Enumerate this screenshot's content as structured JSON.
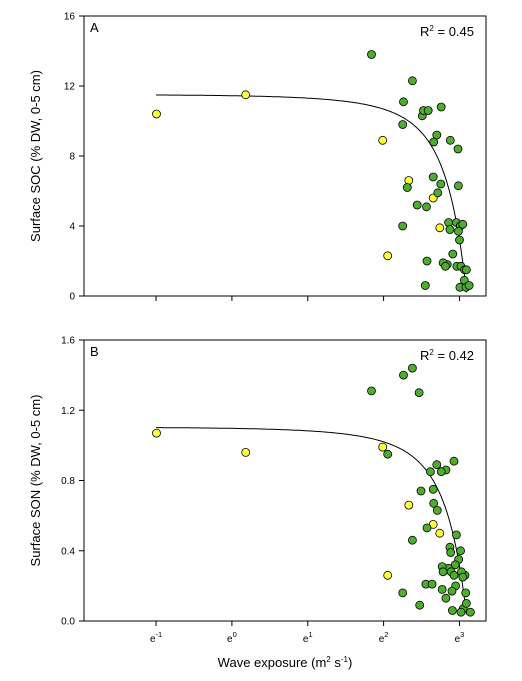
{
  "colors": {
    "green_series": "#4cae2c",
    "yellow_series": "#ffff3a",
    "axis": "#000000",
    "background": "#ffffff"
  },
  "chart_data": [
    {
      "type": "scatter",
      "panel": "A",
      "annotation": "R² = 0.45",
      "ylabel": "Surface SOC (% DW, 0-5 cm)",
      "xlabel": "",
      "x_scale": "log_e",
      "x_ticks": [
        {
          "label": "e",
          "sup": "-1"
        },
        {
          "label": "e",
          "sup": "0"
        },
        {
          "label": "e",
          "sup": "1"
        },
        {
          "label": "e",
          "sup": "2"
        },
        {
          "label": "e",
          "sup": "3"
        }
      ],
      "y_ticks": [
        "0",
        "4",
        "8",
        "12",
        "16"
      ],
      "ylim": [
        0,
        16
      ],
      "xlim_ln": [
        -1.95,
        3.35
      ],
      "grid": false,
      "fit": {
        "ymax": 11.9,
        "k": 0.0435
      },
      "series": [
        {
          "color": "yellow",
          "points": [
            [
              0.37,
              10.4
            ],
            [
              1.2,
              11.5
            ],
            [
              7.3,
              8.9
            ],
            [
              7.8,
              2.3
            ],
            [
              10.3,
              6.6
            ],
            [
              14.2,
              5.6
            ],
            [
              15.5,
              3.9
            ]
          ]
        },
        {
          "color": "green",
          "points": [
            [
              6.3,
              13.8
            ],
            [
              9.6,
              11.1
            ],
            [
              10.8,
              12.3
            ],
            [
              9.5,
              9.8
            ],
            [
              12.3,
              10.3
            ],
            [
              12.5,
              10.6
            ],
            [
              13.3,
              10.6
            ],
            [
              14.3,
              8.8
            ],
            [
              14.9,
              9.2
            ],
            [
              15.8,
              10.8
            ],
            [
              17.8,
              8.9
            ],
            [
              19.7,
              8.4
            ],
            [
              15.7,
              6.4
            ],
            [
              14.2,
              6.8
            ],
            [
              19.8,
              6.3
            ],
            [
              10.1,
              6.2
            ],
            [
              15.1,
              5.9
            ],
            [
              11.5,
              5.2
            ],
            [
              13.0,
              5.1
            ],
            [
              17.4,
              4.2
            ],
            [
              17.7,
              3.8
            ],
            [
              19.3,
              4.2
            ],
            [
              20.3,
              4.0
            ],
            [
              21.0,
              4.1
            ],
            [
              19.8,
              3.7
            ],
            [
              20.1,
              3.2
            ],
            [
              18.4,
              2.4
            ],
            [
              17.1,
              1.8
            ],
            [
              16.2,
              1.9
            ],
            [
              16.7,
              1.7
            ],
            [
              19.4,
              1.7
            ],
            [
              20.5,
              1.7
            ],
            [
              21.5,
              1.5
            ],
            [
              22.0,
              1.5
            ],
            [
              21.4,
              0.9
            ],
            [
              20.2,
              0.5
            ],
            [
              21.9,
              0.5
            ],
            [
              22.8,
              0.6
            ],
            [
              9.5,
              4.0
            ],
            [
              13.1,
              2.0
            ],
            [
              12.8,
              0.6
            ]
          ]
        }
      ]
    },
    {
      "type": "scatter",
      "panel": "B",
      "annotation": "R² = 0.42",
      "ylabel": "Surface SON (% DW, 0-5 cm)",
      "xlabel": "Wave exposure (m² s⁻¹)",
      "x_scale": "log_e",
      "x_ticks": [
        {
          "label": "e",
          "sup": "-1"
        },
        {
          "label": "e",
          "sup": "0"
        },
        {
          "label": "e",
          "sup": "1"
        },
        {
          "label": "e",
          "sup": "2"
        },
        {
          "label": "e",
          "sup": "3"
        }
      ],
      "y_ticks": [
        "0.0",
        "0.4",
        "0.8",
        "1.2",
        "1.6"
      ],
      "ylim": [
        0,
        1.6
      ],
      "xlim_ln": [
        -1.95,
        3.35
      ],
      "grid": false,
      "fit": {
        "ymax": 1.145,
        "k": 0.042
      },
      "series": [
        {
          "color": "yellow",
          "points": [
            [
              0.37,
              1.07
            ],
            [
              1.2,
              0.96
            ],
            [
              7.3,
              0.99
            ],
            [
              7.8,
              0.26
            ],
            [
              10.3,
              0.66
            ],
            [
              14.2,
              0.55
            ],
            [
              15.5,
              0.5
            ]
          ]
        },
        {
          "color": "green",
          "points": [
            [
              6.3,
              1.31
            ],
            [
              9.6,
              1.4
            ],
            [
              10.8,
              1.44
            ],
            [
              11.8,
              1.3
            ],
            [
              7.8,
              0.95
            ],
            [
              16.8,
              0.86
            ],
            [
              18.7,
              0.91
            ],
            [
              14.9,
              0.89
            ],
            [
              15.8,
              0.85
            ],
            [
              14.2,
              0.75
            ],
            [
              13.7,
              0.85
            ],
            [
              14.3,
              0.67
            ],
            [
              15.0,
              0.63
            ],
            [
              12.1,
              0.74
            ],
            [
              13.1,
              0.53
            ],
            [
              10.8,
              0.46
            ],
            [
              19.3,
              0.49
            ],
            [
              20.4,
              0.4
            ],
            [
              21.6,
              0.26
            ],
            [
              17.7,
              0.42
            ],
            [
              17.9,
              0.39
            ],
            [
              19.9,
              0.35
            ],
            [
              19.0,
              0.32
            ],
            [
              17.4,
              0.3
            ],
            [
              16.0,
              0.31
            ],
            [
              16.2,
              0.28
            ],
            [
              18.0,
              0.28
            ],
            [
              18.7,
              0.26
            ],
            [
              20.6,
              0.28
            ],
            [
              21.0,
              0.25
            ],
            [
              19.1,
              0.2
            ],
            [
              18.2,
              0.17
            ],
            [
              16.0,
              0.18
            ],
            [
              12.9,
              0.21
            ],
            [
              14.0,
              0.21
            ],
            [
              16.8,
              0.13
            ],
            [
              18.3,
              0.06
            ],
            [
              21.1,
              0.07
            ],
            [
              20.5,
              0.05
            ],
            [
              22.0,
              0.1
            ],
            [
              21.8,
              0.16
            ],
            [
              23.2,
              0.05
            ],
            [
              9.5,
              0.16
            ],
            [
              11.9,
              0.09
            ]
          ]
        }
      ]
    }
  ]
}
